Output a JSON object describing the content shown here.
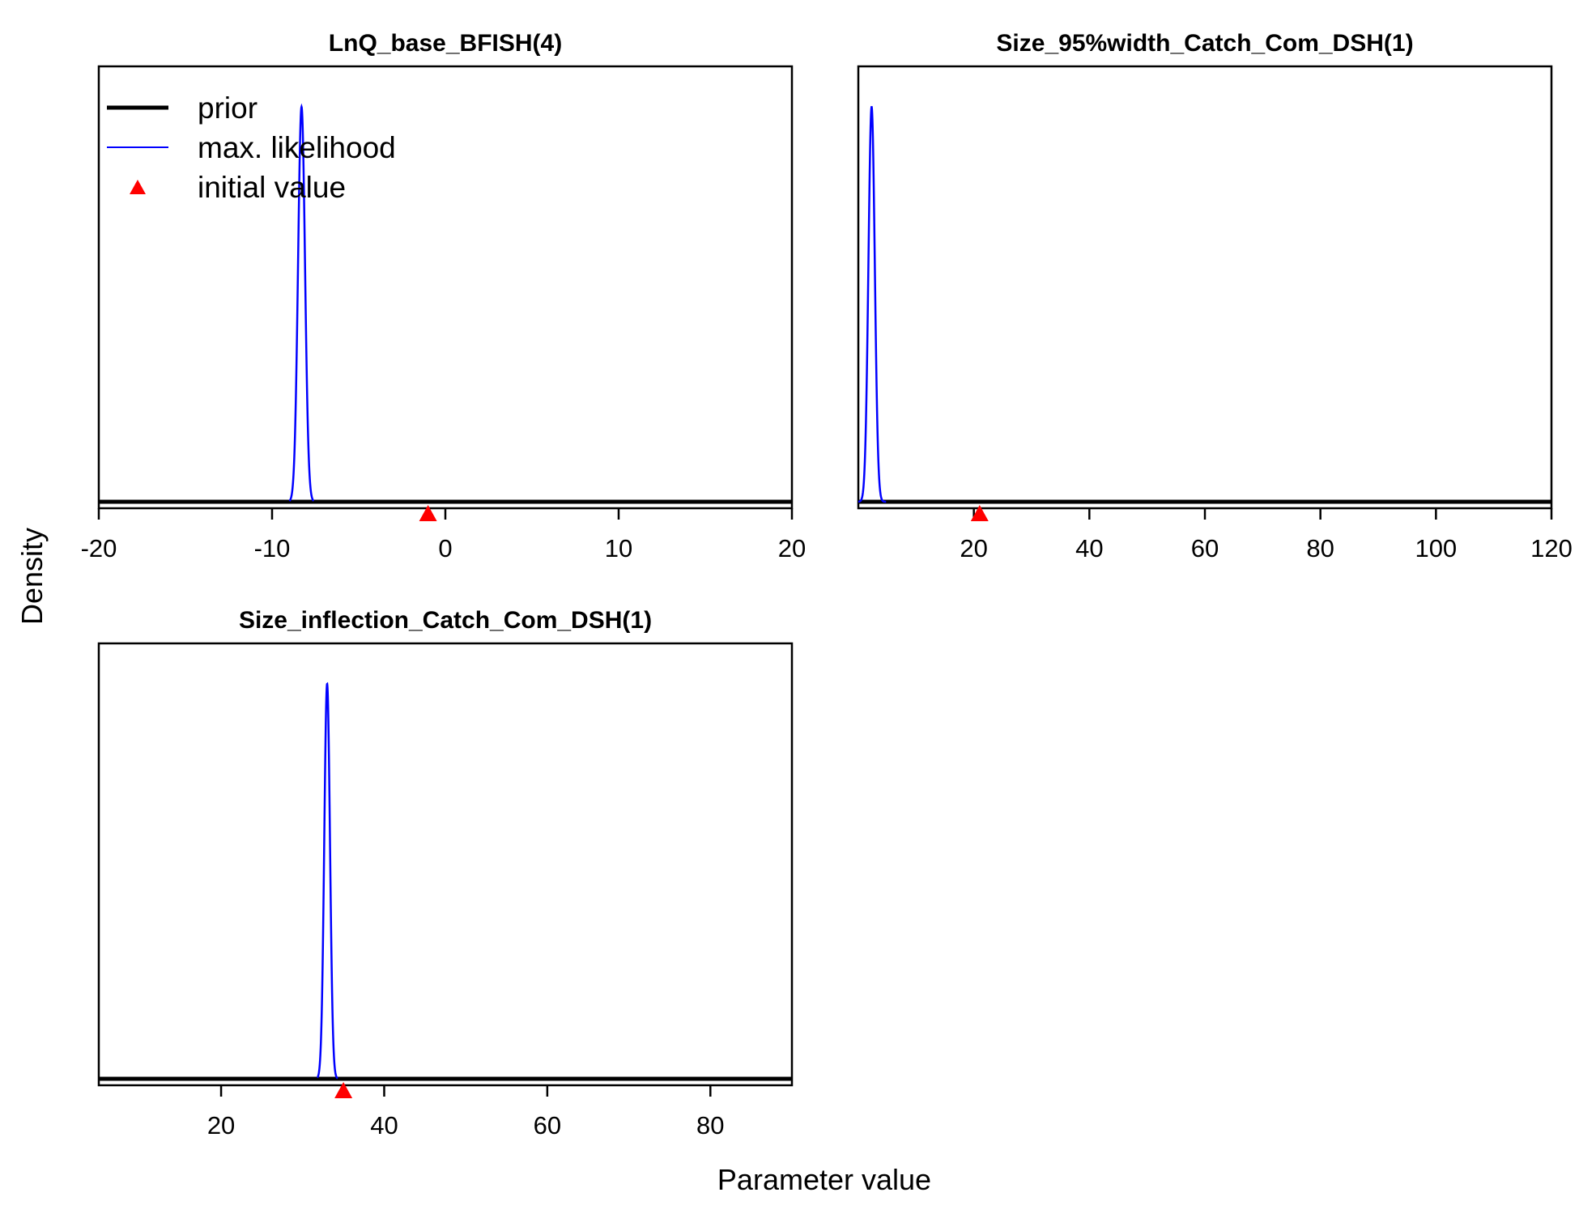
{
  "figure": {
    "ylabel": "Density",
    "xlabel": "Parameter value",
    "legend": {
      "placement": "top-left of first panel",
      "items": [
        {
          "label": "prior",
          "kind": "thick-line",
          "color": "#000000"
        },
        {
          "label": "max. likelihood",
          "kind": "thin-line",
          "color": "#0000ff"
        },
        {
          "label": "initial value",
          "kind": "triangle",
          "color": "#ff0000"
        }
      ]
    }
  },
  "chart_data": [
    {
      "type": "line",
      "title": "LnQ_base_BFISH(4)",
      "xlim": [
        -20,
        20
      ],
      "xticks": [
        -20,
        -10,
        0,
        10,
        20
      ],
      "ylabel": "Density",
      "prior": {
        "type": "flat"
      },
      "max_likelihood": {
        "mean": -8.3,
        "sd": 0.2,
        "peak": 1.0,
        "x_range": [
          -9.0,
          -7.6
        ]
      },
      "initial_value": -1.0
    },
    {
      "type": "line",
      "title": "Size_95%width_Catch_Com_DSH(1)",
      "xlim": [
        0,
        120
      ],
      "xticks": [
        20,
        40,
        60,
        80,
        100,
        120
      ],
      "prior": {
        "type": "flat"
      },
      "max_likelihood": {
        "mean": 2.3,
        "sd": 0.55,
        "peak": 1.0,
        "x_range": [
          0.0,
          4.8
        ]
      },
      "initial_value": 21
    },
    {
      "type": "line",
      "title": "Size_inflection_Catch_Com_DSH(1)",
      "xlim": [
        5,
        90
      ],
      "xticks": [
        20,
        40,
        60,
        80
      ],
      "xlabel": "Parameter value",
      "prior": {
        "type": "flat"
      },
      "max_likelihood": {
        "mean": 33.0,
        "sd": 0.35,
        "peak": 1.0,
        "x_range": [
          31.8,
          34.3
        ]
      },
      "initial_value": 35
    }
  ]
}
